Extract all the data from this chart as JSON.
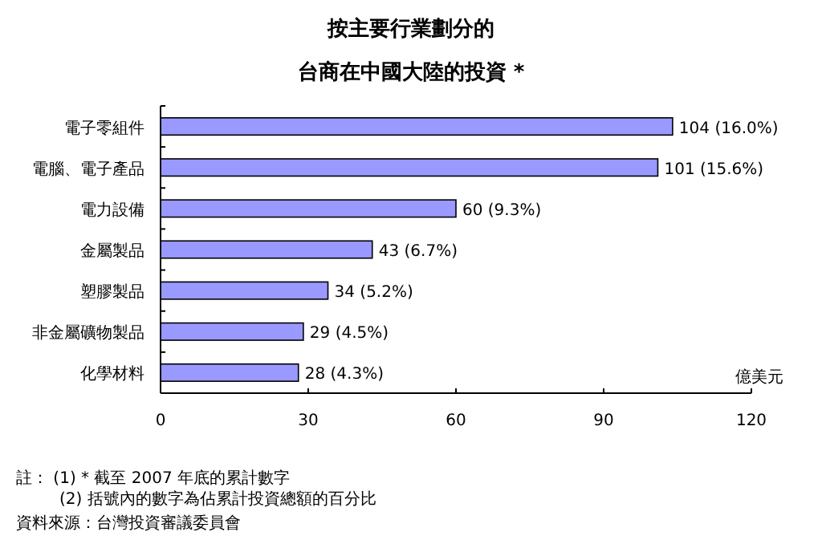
{
  "chart_data": {
    "type": "bar",
    "orientation": "horizontal",
    "title": "按主要行業劃分的",
    "subtitle": "台商在中國大陸的投資  *",
    "categories": [
      "電子零組件",
      "電腦、電子產品",
      "電力設備",
      "金屬製品",
      "塑膠製品",
      "非金屬礦物製品",
      "化學材料"
    ],
    "values": [
      104,
      101,
      60,
      43,
      34,
      29,
      28
    ],
    "value_labels": [
      "104 (16.0%)",
      "101 (15.6%)",
      "60 (9.3%)",
      "43 (6.7%)",
      "34 (5.2%)",
      "29 (4.5%)",
      "28 (4.3%)"
    ],
    "color": "#9999ff",
    "xlabel": "億美元",
    "xlim": [
      0,
      120
    ],
    "xticks": [
      0,
      30,
      60,
      90,
      120
    ],
    "grid": false,
    "annotations": [
      "註：  (1) * 截至 2007 年底的累計數字",
      "(2) 括號內的數字為佔累計投資總額的百分比",
      "資料來源：台灣投資審議委員會"
    ]
  }
}
